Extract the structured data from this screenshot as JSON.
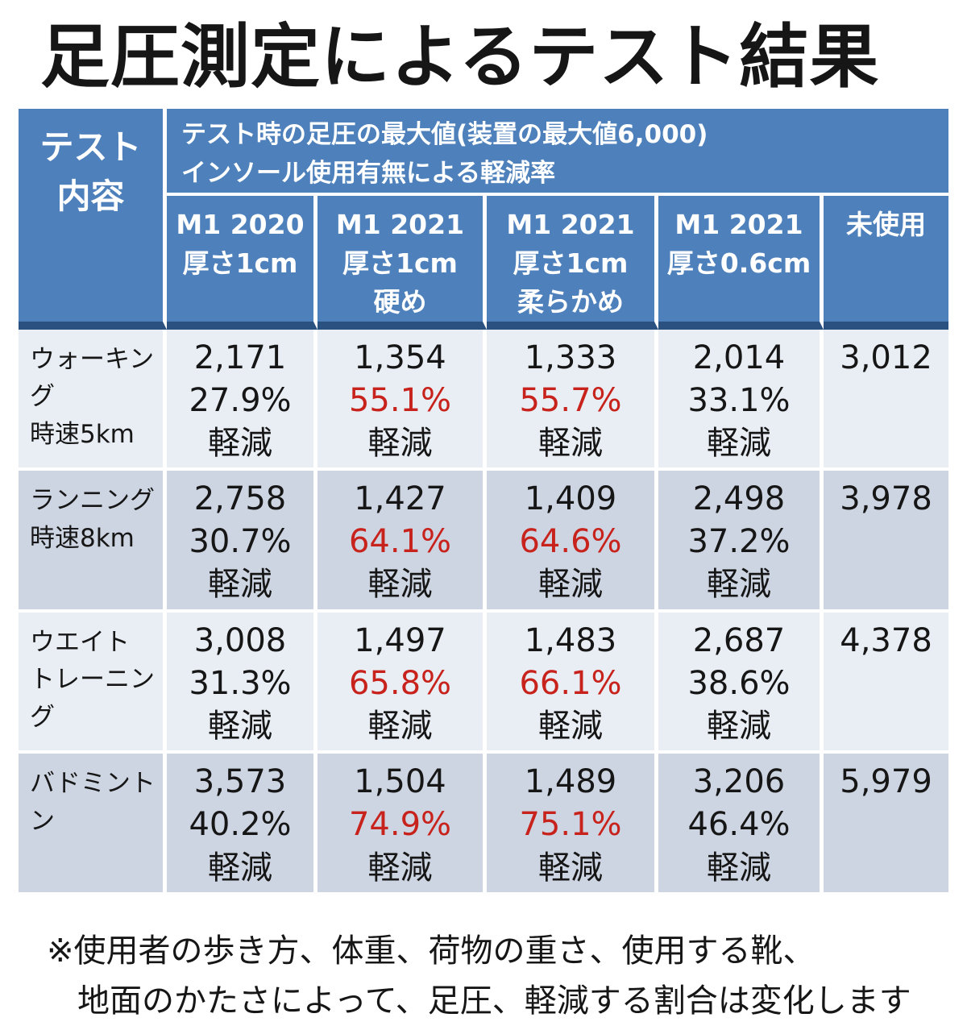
{
  "colors": {
    "header_blue": "#4E81BC",
    "header_divider_navy": "#2B5180",
    "row_light": "#E9EEF4",
    "row_dark": "#CED5E2",
    "highlight_red": "#C7231C",
    "text_black": "#161616",
    "text_white": "#FFFFFF"
  },
  "title": "足圧測定によるテスト結果",
  "table": {
    "corner": {
      "lines": [
        "テスト",
        "内容"
      ]
    },
    "description": {
      "lines": [
        "テスト時の足圧の最大値(装置の最大値6,000)",
        "インソール使用有無による軽減率"
      ]
    },
    "columns": [
      {
        "lines": [
          "M1 2020",
          "厚さ1cm",
          ""
        ]
      },
      {
        "lines": [
          "M1 2021",
          "厚さ1cm",
          "硬め"
        ]
      },
      {
        "lines": [
          "M1 2021",
          "厚さ1cm",
          "柔らかめ"
        ]
      },
      {
        "lines": [
          "M1 2021",
          "厚さ0.6cm",
          ""
        ]
      },
      {
        "lines": [
          "未使用",
          "",
          ""
        ]
      }
    ],
    "rows": [
      {
        "label_lines": [
          "ウォーキング",
          "時速5km"
        ],
        "cells": [
          {
            "value": "2,171",
            "percent": "27.9%",
            "suffix": "軽減",
            "highlight": false
          },
          {
            "value": "1,354",
            "percent": "55.1%",
            "suffix": "軽減",
            "highlight": true
          },
          {
            "value": "1,333",
            "percent": "55.7%",
            "suffix": "軽減",
            "highlight": true
          },
          {
            "value": "2,014",
            "percent": "33.1%",
            "suffix": "軽減",
            "highlight": false
          },
          {
            "value": "3,012"
          }
        ]
      },
      {
        "label_lines": [
          "ランニング",
          "時速8km"
        ],
        "cells": [
          {
            "value": "2,758",
            "percent": "30.7%",
            "suffix": "軽減",
            "highlight": false
          },
          {
            "value": "1,427",
            "percent": "64.1%",
            "suffix": "軽減",
            "highlight": true
          },
          {
            "value": "1,409",
            "percent": "64.6%",
            "suffix": "軽減",
            "highlight": true
          },
          {
            "value": "2,498",
            "percent": "37.2%",
            "suffix": "軽減",
            "highlight": false
          },
          {
            "value": "3,978"
          }
        ]
      },
      {
        "label_lines": [
          "ウエイト",
          "トレーニング"
        ],
        "cells": [
          {
            "value": "3,008",
            "percent": "31.3%",
            "suffix": "軽減",
            "highlight": false
          },
          {
            "value": "1,497",
            "percent": "65.8%",
            "suffix": "軽減",
            "highlight": true
          },
          {
            "value": "1,483",
            "percent": "66.1%",
            "suffix": "軽減",
            "highlight": true
          },
          {
            "value": "2,687",
            "percent": "38.6%",
            "suffix": "軽減",
            "highlight": false
          },
          {
            "value": "4,378"
          }
        ]
      },
      {
        "label_lines": [
          "バドミントン",
          ""
        ],
        "cells": [
          {
            "value": "3,573",
            "percent": "40.2%",
            "suffix": "軽減",
            "highlight": false
          },
          {
            "value": "1,504",
            "percent": "74.9%",
            "suffix": "軽減",
            "highlight": true
          },
          {
            "value": "1,489",
            "percent": "75.1%",
            "suffix": "軽減",
            "highlight": true
          },
          {
            "value": "3,206",
            "percent": "46.4%",
            "suffix": "軽減",
            "highlight": false
          },
          {
            "value": "5,979"
          }
        ]
      }
    ]
  },
  "footnote": {
    "lines": [
      "※使用者の歩き方、体重、荷物の重さ、使用する靴、",
      "地面のかたさによって、足圧、軽減する割合は変化します"
    ]
  }
}
